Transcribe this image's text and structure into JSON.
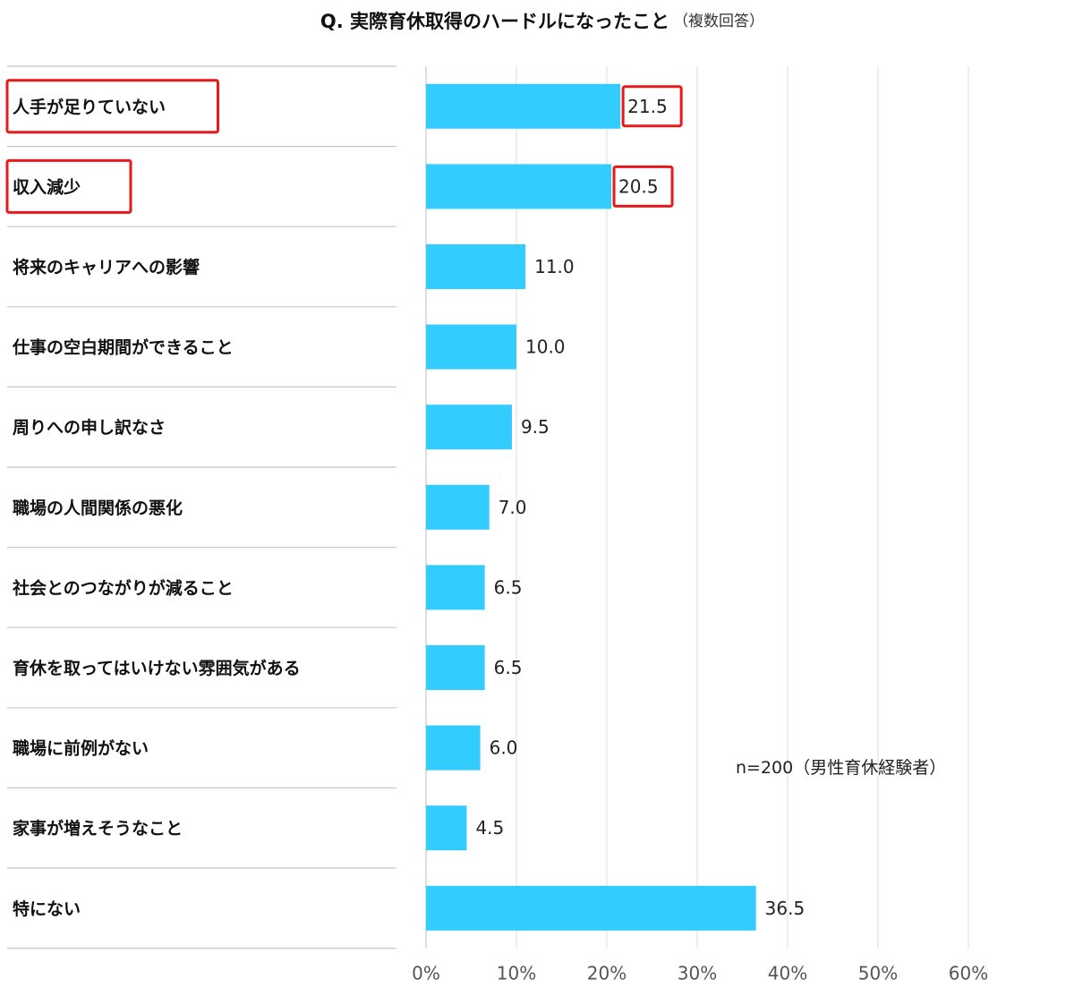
{
  "chart_data": {
    "type": "bar",
    "orientation": "horizontal",
    "title": "Q. 実際育休取得のハードルになったこと",
    "subtitle": "（複数回答）",
    "categories": [
      "人手が足りていない",
      "収入減少",
      "将来のキャリアへの影響",
      "仕事の空白期間ができること",
      "周りへの申し訳なさ",
      "職場の人間関係の悪化",
      "社会とのつながりが減ること",
      "育休を取ってはいけない雰囲気がある",
      "職場に前例がない",
      "家事が増えそうなこと",
      "特にない"
    ],
    "values": [
      21.5,
      20.5,
      11.0,
      10.0,
      9.5,
      7.0,
      6.5,
      6.5,
      6.0,
      4.5,
      36.5
    ],
    "value_labels": [
      "21.5",
      "20.5",
      "11.0",
      "10.0",
      "9.5",
      "7.0",
      "6.5",
      "6.5",
      "6.0",
      "4.5",
      "36.5"
    ],
    "highlighted": [
      0,
      1
    ],
    "xlim": [
      0,
      60
    ],
    "xticks": [
      0,
      10,
      20,
      30,
      40,
      50,
      60
    ],
    "xtick_labels": [
      "0%",
      "10%",
      "20%",
      "30%",
      "40%",
      "50%",
      "60%"
    ],
    "grid": true,
    "bar_color": "#33ccff",
    "highlight_color": "#e8191a",
    "note": "n=200（男性育休経験者）"
  }
}
